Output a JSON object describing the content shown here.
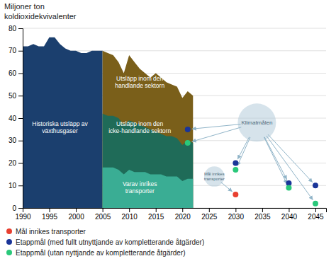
{
  "chart_data": {
    "type": "area",
    "title": "Miljoner ton",
    "subtitle": "koldioxidekvivalenter",
    "xlim": [
      1990,
      2047
    ],
    "ylim": [
      0,
      80
    ],
    "xticks": [
      1990,
      1995,
      2000,
      2005,
      2010,
      2015,
      2020,
      2025,
      2030,
      2035,
      2040,
      2045
    ],
    "yticks": [
      0,
      10,
      20,
      30,
      40,
      50,
      60,
      70,
      80
    ],
    "grid": "y",
    "legend": "bottom",
    "series": [
      {
        "type": "area",
        "color": "#1b3f6e",
        "x": [
          1990,
          1991,
          1992,
          1993,
          1994,
          1995,
          1996,
          1997,
          1998,
          1999,
          2000,
          2001,
          2002,
          2003,
          2004,
          2005
        ],
        "values": [
          72,
          72,
          73,
          72,
          72,
          76,
          76,
          73,
          71,
          70,
          70,
          69,
          69,
          70,
          70,
          70
        ]
      },
      {
        "type": "area",
        "color": "#7a5f1a",
        "x": [
          2005,
          2006,
          2007,
          2008,
          2009,
          2010,
          2011,
          2012,
          2013,
          2014,
          2015,
          2016,
          2017,
          2018,
          2019,
          2020,
          2021,
          2022
        ],
        "values": [
          70,
          69,
          68,
          65,
          60,
          68,
          65,
          62,
          60,
          58,
          60,
          58,
          56,
          55,
          54,
          49,
          52,
          50
        ]
      },
      {
        "type": "area",
        "color": "#1f6b58",
        "x": [
          2005,
          2006,
          2007,
          2008,
          2009,
          2010,
          2011,
          2012,
          2013,
          2014,
          2015,
          2016,
          2017,
          2018,
          2019,
          2020,
          2021,
          2022
        ],
        "values": [
          42,
          41,
          41,
          40,
          37,
          39,
          38,
          37,
          36,
          35,
          34,
          33,
          32,
          32,
          31,
          28,
          30,
          29
        ]
      },
      {
        "type": "area",
        "color": "#3aad94",
        "x": [
          2005,
          2006,
          2007,
          2008,
          2009,
          2010,
          2011,
          2012,
          2013,
          2014,
          2015,
          2016,
          2017,
          2018,
          2019,
          2020,
          2021,
          2022
        ],
        "values": [
          18,
          18,
          18,
          17,
          15,
          17,
          16,
          16,
          16,
          15,
          15,
          15,
          14,
          14,
          14,
          12,
          13,
          13
        ]
      },
      {
        "type": "scatter",
        "name": "Mål inrikes transporter",
        "color": "#e84030",
        "x": [
          2030
        ],
        "values": [
          6
        ]
      },
      {
        "type": "scatter",
        "name": "Etappmål (med fullt utnyttjande av kompletterande åtgärder)",
        "color": "#1a3598",
        "x": [
          2021,
          2030,
          2040,
          2045
        ],
        "values": [
          35,
          20,
          11,
          10
        ]
      },
      {
        "type": "scatter",
        "name": "Etappmål (utan nyttjande av kompletterande åtgärder)",
        "color": "#2ac87a",
        "x": [
          2021,
          2030,
          2040,
          2045
        ],
        "values": [
          29,
          17,
          9,
          2
        ]
      }
    ],
    "annotations": [
      {
        "text": "Historiska utsläpp av\nväxthusgaser",
        "x": 1997,
        "y": 36
      },
      {
        "text": "Utsläpp inom den\nhandlande sektorn",
        "x": 2012,
        "y": 56
      },
      {
        "text": "Utsläpp inom den\nicke-handlande sektorn",
        "x": 2012,
        "y": 36
      },
      {
        "text": "Varav inrikes\ntransporter",
        "x": 2012,
        "y": 9
      }
    ],
    "bubbles": [
      {
        "label": "Klimatmålen",
        "x": 2034,
        "y": 38,
        "size": 8.5,
        "color": "#aec8d8",
        "arrow_color": "#90b4c8",
        "targets": [
          [
            2021,
            35
          ],
          [
            2021,
            29
          ],
          [
            2030,
            20
          ],
          [
            2030,
            17
          ],
          [
            2040,
            11
          ],
          [
            2040,
            9
          ],
          [
            2045,
            10
          ],
          [
            2045,
            2
          ]
        ]
      },
      {
        "label": "Mål inrikes\ntransporter",
        "x": 2026,
        "y": 14,
        "size": 4.5,
        "color": "#aec8d8",
        "arrow_color": "#90b4c8",
        "targets": [
          [
            2030,
            6
          ]
        ]
      }
    ]
  }
}
